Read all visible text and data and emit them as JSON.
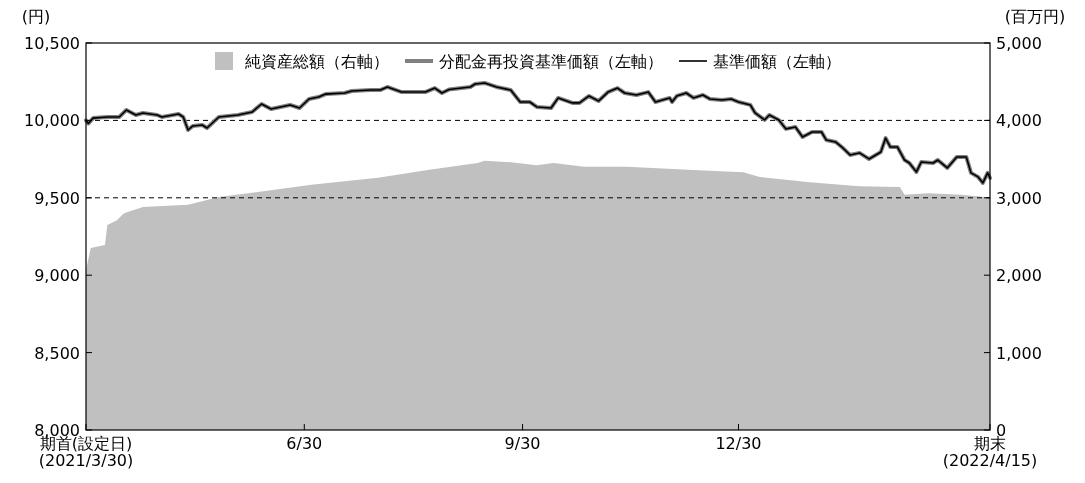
{
  "chart_data": {
    "type": "line",
    "ylabel": "(円)",
    "y2label": "(百万円)",
    "legend": "top",
    "xlim": [
      "2021-03-30",
      "2022-04-15"
    ],
    "xticks": [
      {
        "value": "2021-03-30",
        "label": "期首(設定日)\n(2021/3/30)"
      },
      {
        "value": "2021-06-30",
        "label": "6/30"
      },
      {
        "value": "2021-09-30",
        "label": "9/30"
      },
      {
        "value": "2021-12-30",
        "label": "12/30"
      },
      {
        "value": "2022-04-15",
        "label": "期末\n(2022/4/15)"
      }
    ],
    "ylim": [
      8000,
      10500
    ],
    "yticks": [
      {
        "value": 8000,
        "label": "8,000"
      },
      {
        "value": 8500,
        "label": "8,500"
      },
      {
        "value": 9000,
        "label": "9,000"
      },
      {
        "value": 9500,
        "label": "9,500"
      },
      {
        "value": 10000,
        "label": "10,000"
      },
      {
        "value": 10500,
        "label": "10,500"
      }
    ],
    "y2lim": [
      0,
      5000
    ],
    "y2ticks": [
      0,
      {
        "value": 1000,
        "label": "1,000"
      },
      {
        "value": 2000,
        "label": "2,000"
      },
      {
        "value": 3000,
        "label": "3,000"
      },
      {
        "value": 4000,
        "label": "4,000"
      },
      {
        "value": 5000,
        "label": "5,000"
      }
    ],
    "ref_lines": [
      {
        "axis": "y",
        "value": 10000,
        "color": "#000000",
        "line_style": "dashed"
      },
      {
        "axis": "y",
        "value": 9500,
        "color": "#000000",
        "line_style": "dashed"
      }
    ],
    "x": [
      "2021-03-30",
      "2021-03-31",
      "2021-04-02",
      "2021-04-08",
      "2021-04-13",
      "2021-04-16",
      "2021-04-20",
      "2021-04-23",
      "2021-04-29",
      "2021-05-01",
      "2021-05-08",
      "2021-05-10",
      "2021-05-12",
      "2021-05-14",
      "2021-05-18",
      "2021-05-20",
      "2021-05-25",
      "2021-06-02",
      "2021-06-08",
      "2021-06-12",
      "2021-06-16",
      "2021-06-24",
      "2021-06-28",
      "2021-07-02",
      "2021-07-06",
      "2021-07-09",
      "2021-07-17",
      "2021-07-20",
      "2021-07-28",
      "2021-08-01",
      "2021-08-04",
      "2021-08-10",
      "2021-08-20",
      "2021-08-24",
      "2021-08-27",
      "2021-08-30",
      "2021-09-08",
      "2021-09-10",
      "2021-09-14",
      "2021-09-19",
      "2021-09-25",
      "2021-09-29",
      "2021-10-03",
      "2021-10-06",
      "2021-10-12",
      "2021-10-15",
      "2021-10-21",
      "2021-10-24",
      "2021-10-28",
      "2021-11-01",
      "2021-11-05",
      "2021-11-09",
      "2021-11-12",
      "2021-11-17",
      "2021-11-22",
      "2021-11-25",
      "2021-12-01",
      "2021-12-02",
      "2021-12-04",
      "2021-12-08",
      "2021-12-11",
      "2021-12-15",
      "2021-12-18",
      "2021-12-23",
      "2021-12-27",
      "2021-12-30",
      "2022-01-04",
      "2022-01-06",
      "2022-01-10",
      "2022-01-12",
      "2022-01-16",
      "2022-01-19",
      "2022-01-23",
      "2022-01-26",
      "2022-01-30",
      "2022-02-03",
      "2022-02-05",
      "2022-02-09",
      "2022-02-12",
      "2022-02-15",
      "2022-02-19",
      "2022-02-23",
      "2022-02-28",
      "2022-03-02",
      "2022-03-04",
      "2022-03-07",
      "2022-03-10",
      "2022-03-12",
      "2022-03-15",
      "2022-03-17",
      "2022-03-22",
      "2022-03-24",
      "2022-03-28",
      "2022-04-01",
      "2022-04-05",
      "2022-04-07",
      "2022-04-10",
      "2022-04-12",
      "2022-04-14",
      "2022-04-15"
    ],
    "series": [
      {
        "name": "純資産総額（右軸）",
        "type": "area",
        "axis": "y2",
        "color": "#c0c0c0",
        "x": [
          "2021-03-30",
          "2021-04-01",
          "2021-04-07",
          "2021-04-08",
          "2021-04-12",
          "2021-04-15",
          "2021-04-23",
          "2021-05-12",
          "2021-05-25",
          "2021-06-12",
          "2021-07-03",
          "2021-07-31",
          "2021-08-21",
          "2021-09-11",
          "2021-09-14",
          "2021-09-25",
          "2021-10-06",
          "2021-10-13",
          "2021-10-26",
          "2021-11-13",
          "2021-12-11",
          "2022-01-01",
          "2022-01-08",
          "2022-01-29",
          "2022-02-19",
          "2022-03-08",
          "2022-03-10",
          "2022-03-20",
          "2022-04-03",
          "2022-04-13",
          "2022-04-15"
        ],
        "values": [
          2070,
          2350,
          2390,
          2650,
          2710,
          2800,
          2880,
          2910,
          3010,
          3080,
          3170,
          3260,
          3360,
          3450,
          3480,
          3460,
          3420,
          3450,
          3400,
          3400,
          3360,
          3330,
          3270,
          3200,
          3150,
          3140,
          3040,
          3060,
          3040,
          3010,
          3010
        ]
      },
      {
        "name": "分配金再投資基準価額（左軸）",
        "color": "#808080",
        "values": [
          10000,
          9980,
          10015,
          10022,
          10022,
          10067,
          10035,
          10048,
          10035,
          10022,
          10041,
          10022,
          9938,
          9964,
          9970,
          9951,
          10022,
          10035,
          10054,
          10106,
          10074,
          10100,
          10080,
          10138,
          10151,
          10170,
          10177,
          10190,
          10196,
          10196,
          10216,
          10183,
          10183,
          10209,
          10177,
          10200,
          10216,
          10235,
          10242,
          10216,
          10196,
          10119,
          10119,
          10087,
          10080,
          10145,
          10113,
          10113,
          10158,
          10125,
          10183,
          10209,
          10177,
          10164,
          10183,
          10119,
          10145,
          10119,
          10158,
          10177,
          10145,
          10164,
          10138,
          10132,
          10138,
          10119,
          10100,
          10048,
          10003,
          10035,
          10003,
          9945,
          9957,
          9893,
          9925,
          9925,
          9873,
          9860,
          9822,
          9777,
          9790,
          9751,
          9796,
          9886,
          9828,
          9828,
          9744,
          9725,
          9667,
          9731,
          9725,
          9744,
          9693,
          9764,
          9764,
          9661,
          9635,
          9596,
          9661,
          9628
        ]
      },
      {
        "name": "基準価額（左軸）",
        "color": "#000000",
        "values": [
          10000,
          9980,
          10015,
          10022,
          10022,
          10067,
          10035,
          10048,
          10035,
          10022,
          10041,
          10022,
          9938,
          9964,
          9970,
          9951,
          10022,
          10035,
          10054,
          10106,
          10074,
          10100,
          10080,
          10138,
          10151,
          10170,
          10177,
          10190,
          10196,
          10196,
          10216,
          10183,
          10183,
          10209,
          10177,
          10200,
          10216,
          10235,
          10242,
          10216,
          10196,
          10119,
          10119,
          10087,
          10080,
          10145,
          10113,
          10113,
          10158,
          10125,
          10183,
          10209,
          10177,
          10164,
          10183,
          10119,
          10145,
          10119,
          10158,
          10177,
          10145,
          10164,
          10138,
          10132,
          10138,
          10119,
          10100,
          10048,
          10003,
          10035,
          10003,
          9945,
          9957,
          9893,
          9925,
          9925,
          9873,
          9860,
          9822,
          9777,
          9790,
          9751,
          9796,
          9886,
          9828,
          9828,
          9744,
          9725,
          9667,
          9731,
          9725,
          9744,
          9693,
          9764,
          9764,
          9661,
          9635,
          9596,
          9661,
          9628
        ]
      }
    ]
  }
}
